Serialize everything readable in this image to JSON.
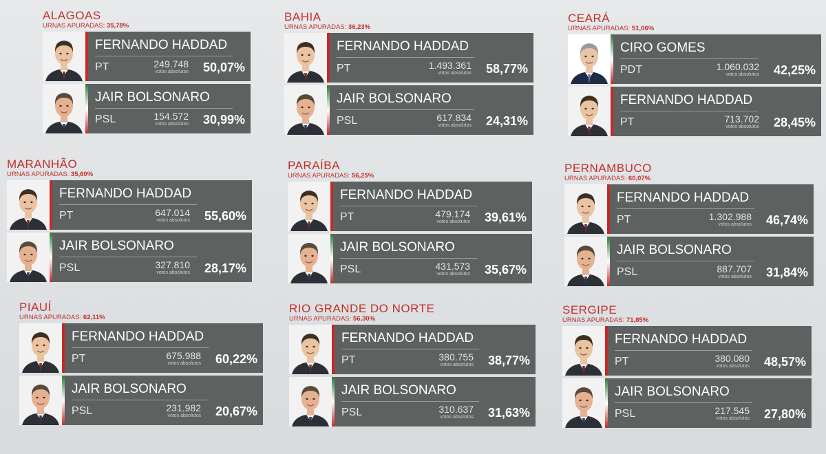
{
  "labels": {
    "urnas_prefix": "URNAS APURADAS:",
    "votes_label": "votos absolutos"
  },
  "colors": {
    "state_red": "#c0302b",
    "card_gray": "#5d615f",
    "pt_bar": "#c62828"
  },
  "states": [
    {
      "name": "ALAGOAS",
      "urnas": "35,78%",
      "candidates": [
        {
          "name": "FERNANDO HADDAD",
          "party": "PT",
          "votes": "249.748",
          "percent": "50,07%",
          "photo": "haddad-photo"
        },
        {
          "name": "JAIR BOLSONARO",
          "party": "PSL",
          "votes": "154.572",
          "percent": "30,99%",
          "photo": "bolsonaro-photo"
        }
      ]
    },
    {
      "name": "BAHIA",
      "urnas": "36,23%",
      "candidates": [
        {
          "name": "FERNANDO HADDAD",
          "party": "PT",
          "votes": "1.493.361",
          "percent": "58,77%",
          "photo": "haddad-photo"
        },
        {
          "name": "JAIR BOLSONARO",
          "party": "PSL",
          "votes": "617.834",
          "percent": "24,31%",
          "photo": "bolsonaro-photo"
        }
      ]
    },
    {
      "name": "CEARÁ",
      "urnas": "51,06%",
      "candidates": [
        {
          "name": "CIRO GOMES",
          "party": "PDT",
          "votes": "1.060.032",
          "percent": "42,25%",
          "photo": "ciro-photo"
        },
        {
          "name": "FERNANDO HADDAD",
          "party": "PT",
          "votes": "713.702",
          "percent": "28,45%",
          "photo": "haddad-photo"
        }
      ]
    },
    {
      "name": "MARANHÃO",
      "urnas": "35,60%",
      "candidates": [
        {
          "name": "FERNANDO HADDAD",
          "party": "PT",
          "votes": "647.014",
          "percent": "55,60%",
          "photo": "haddad-photo"
        },
        {
          "name": "JAIR BOLSONARO",
          "party": "PSL",
          "votes": "327.810",
          "percent": "28,17%",
          "photo": "bolsonaro-photo"
        }
      ]
    },
    {
      "name": "PARAÍBA",
      "urnas": "56,25%",
      "candidates": [
        {
          "name": "FERNANDO HADDAD",
          "party": "PT",
          "votes": "479.174",
          "percent": "39,61%",
          "photo": "haddad-photo"
        },
        {
          "name": "JAIR BOLSONARO",
          "party": "PSL",
          "votes": "431.573",
          "percent": "35,67%",
          "photo": "bolsonaro-photo"
        }
      ]
    },
    {
      "name": "PERNAMBUCO",
      "urnas": "60,07%",
      "candidates": [
        {
          "name": "FERNANDO HADDAD",
          "party": "PT",
          "votes": "1.302.988",
          "percent": "46,74%",
          "photo": "haddad-photo"
        },
        {
          "name": "JAIR BOLSONARO",
          "party": "PSL",
          "votes": "887.707",
          "percent": "31,84%",
          "photo": "bolsonaro-photo"
        }
      ]
    },
    {
      "name": "PIAUÍ",
      "urnas": "62,11%",
      "candidates": [
        {
          "name": "FERNANDO HADDAD",
          "party": "PT",
          "votes": "675.988",
          "percent": "60,22%",
          "photo": "haddad-photo"
        },
        {
          "name": "JAIR BOLSONARO",
          "party": "PSL",
          "votes": "231.982",
          "percent": "20,67%",
          "photo": "bolsonaro-photo"
        }
      ]
    },
    {
      "name": "RIO GRANDE DO NORTE",
      "urnas": "56,30%",
      "candidates": [
        {
          "name": "FERNANDO HADDAD",
          "party": "PT",
          "votes": "380.755",
          "percent": "38,77%",
          "photo": "haddad-photo"
        },
        {
          "name": "JAIR BOLSONARO",
          "party": "PSL",
          "votes": "310.637",
          "percent": "31,63%",
          "photo": "bolsonaro-photo"
        }
      ]
    },
    {
      "name": "SERGIPE",
      "urnas": "71,85%",
      "candidates": [
        {
          "name": "FERNANDO HADDAD",
          "party": "PT",
          "votes": "380.080",
          "percent": "48,57%",
          "photo": "haddad-photo"
        },
        {
          "name": "JAIR BOLSONARO",
          "party": "PSL",
          "votes": "217.545",
          "percent": "27,80%",
          "photo": "bolsonaro-photo"
        }
      ]
    }
  ]
}
